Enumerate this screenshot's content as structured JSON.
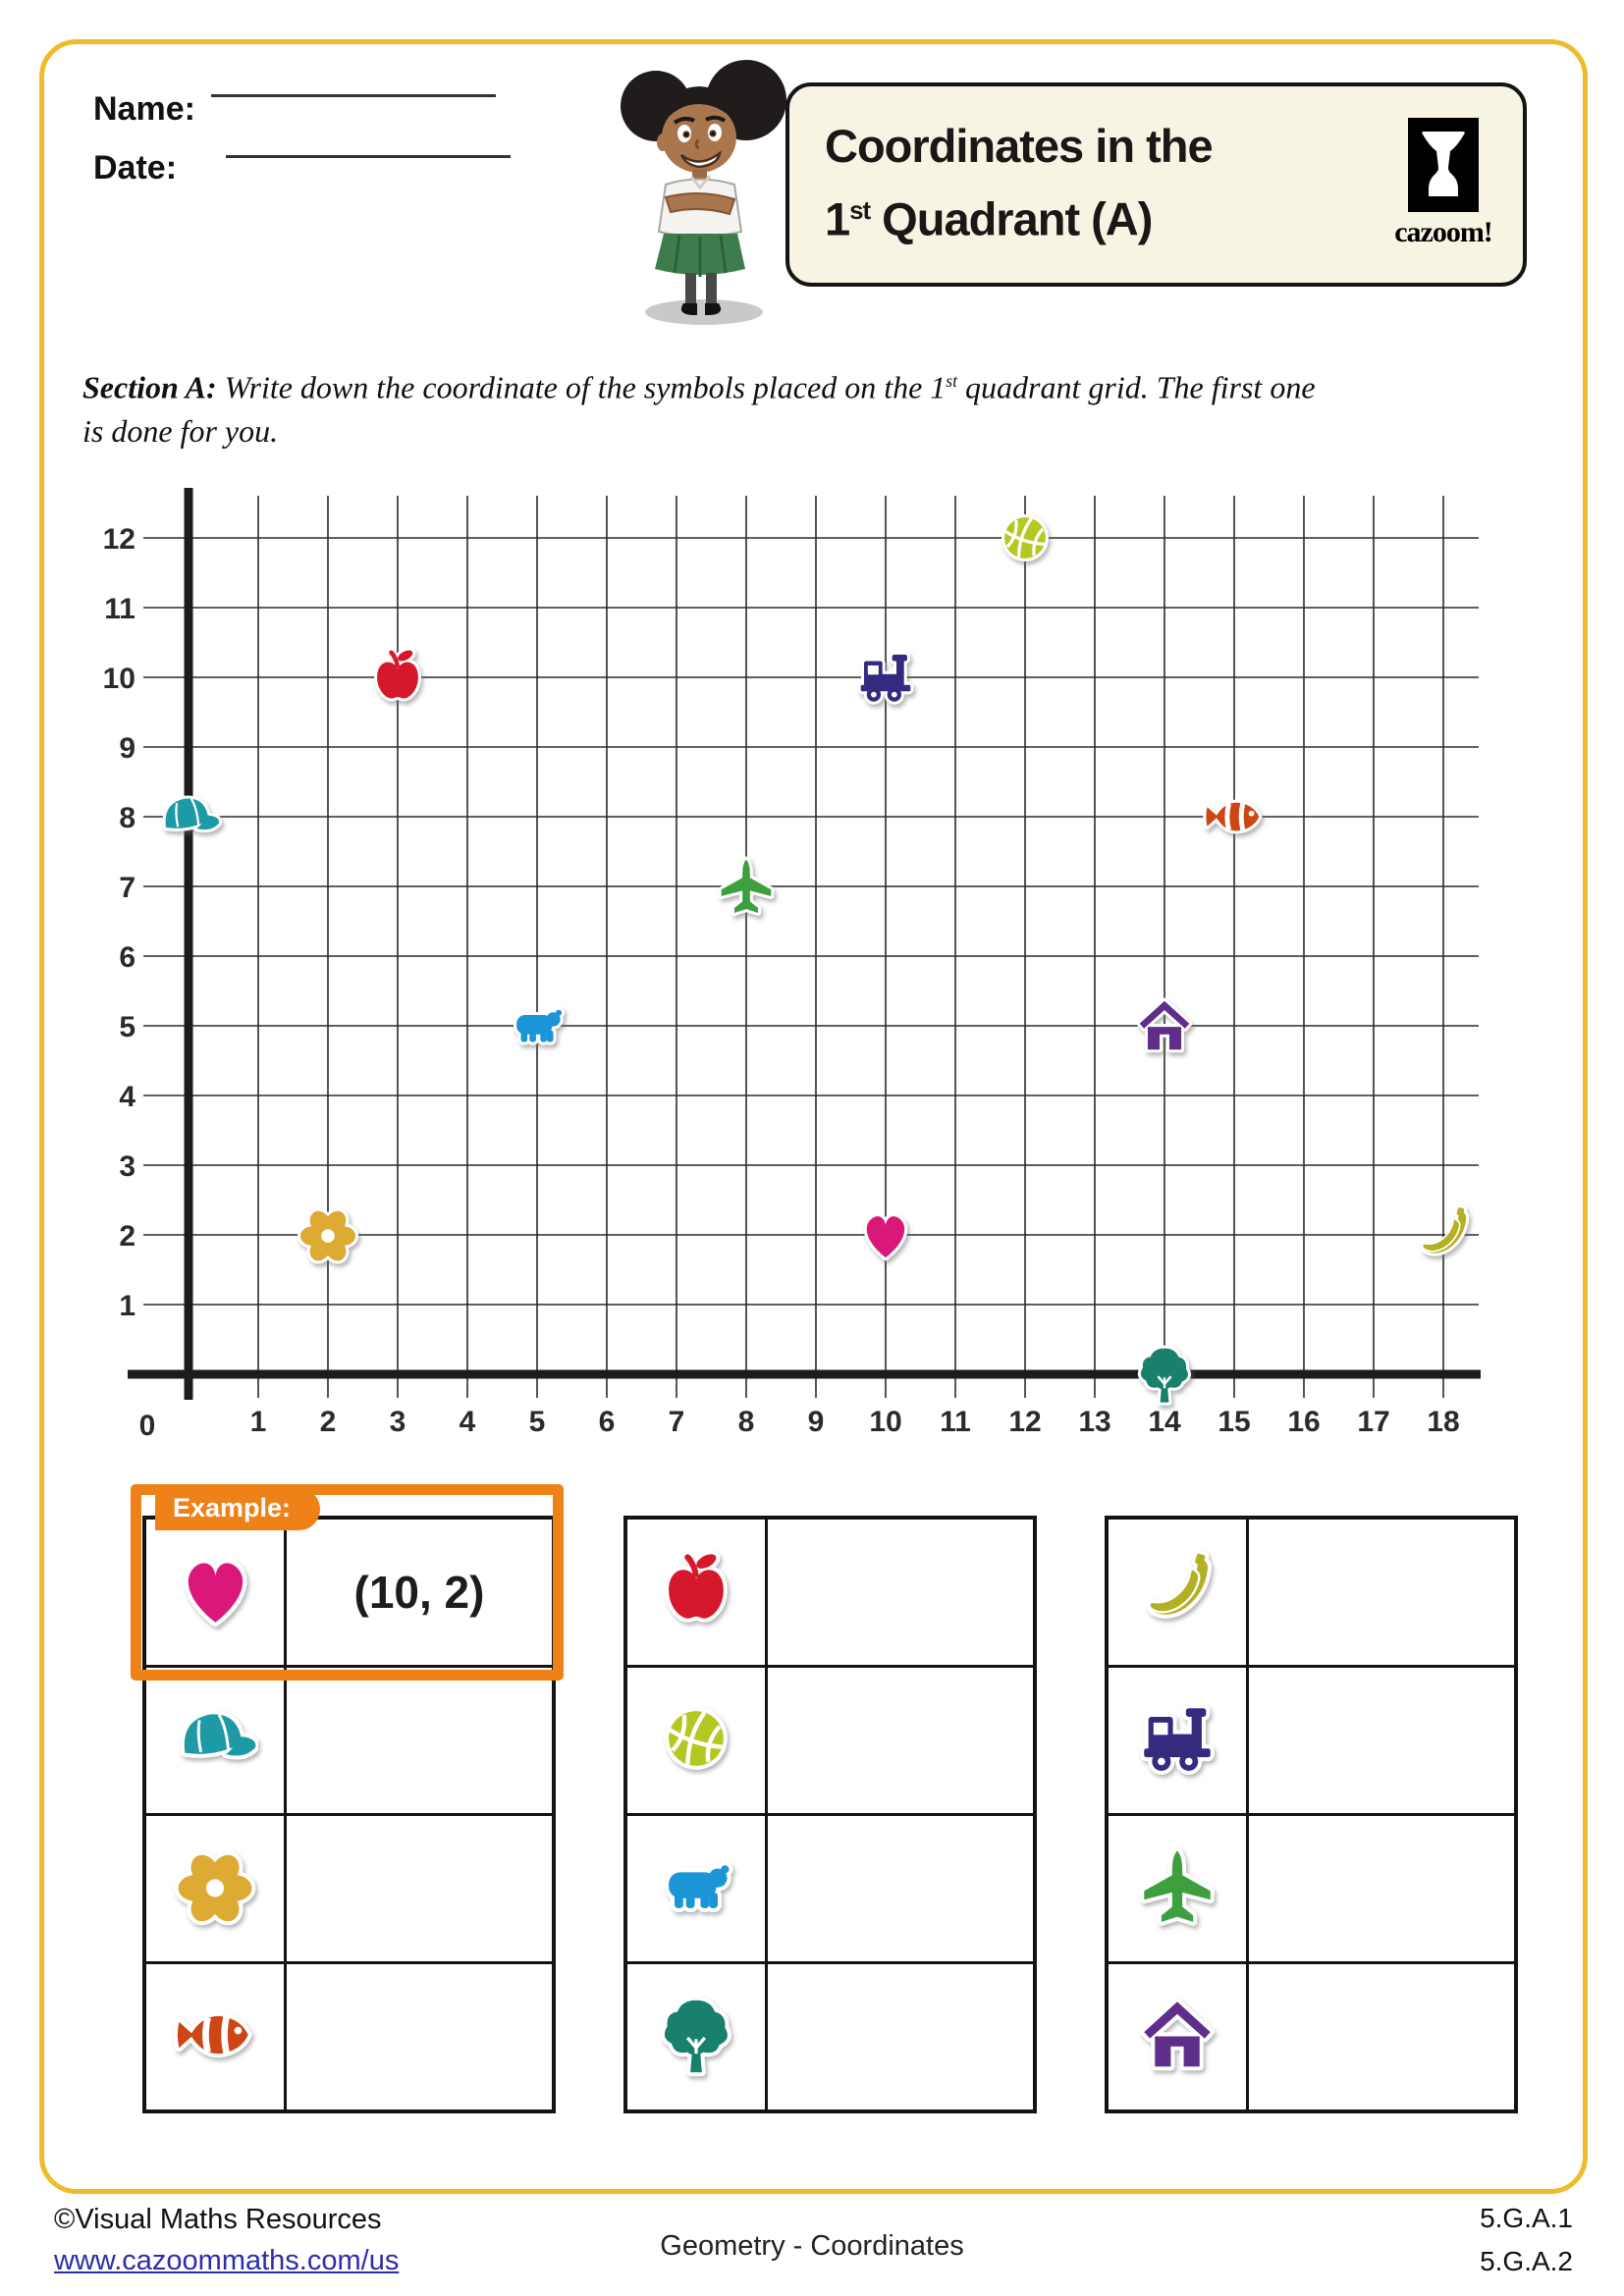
{
  "page": {
    "frame_color": "#eebc2b",
    "accent_orange": "#ee8118"
  },
  "header": {
    "name_label": "Name:",
    "date_label": "Date:",
    "title_line1": "Coordinates in the",
    "title_line2_num": "1",
    "title_line2_sup": "st",
    "title_line2_rest": " Quadrant (A)",
    "logo_text": "cazoom!"
  },
  "section": {
    "label": "Section A:",
    "instr_part1": "  Write down the coordinate of the symbols placed on the 1",
    "instr_sup": "st",
    "instr_part2": " quadrant grid. The first one",
    "instr_line2": "is done for you."
  },
  "grid": {
    "x_max": 18,
    "y_max": 12,
    "x_tick_labels": [
      "0",
      "1",
      "2",
      "3",
      "4",
      "5",
      "6",
      "7",
      "8",
      "9",
      "10",
      "11",
      "12",
      "13",
      "14",
      "15",
      "16",
      "17",
      "18"
    ],
    "y_tick_labels": [
      "1",
      "2",
      "3",
      "4",
      "5",
      "6",
      "7",
      "8",
      "9",
      "10",
      "11",
      "12"
    ],
    "points": [
      {
        "symbol": "cap",
        "x": 0,
        "y": 8
      },
      {
        "symbol": "flower",
        "x": 2,
        "y": 2
      },
      {
        "symbol": "apple",
        "x": 3,
        "y": 10
      },
      {
        "symbol": "bear",
        "x": 5,
        "y": 5
      },
      {
        "symbol": "airplane",
        "x": 8,
        "y": 7
      },
      {
        "symbol": "train",
        "x": 10,
        "y": 10
      },
      {
        "symbol": "heart",
        "x": 10,
        "y": 2
      },
      {
        "symbol": "basketball",
        "x": 12,
        "y": 12
      },
      {
        "symbol": "house",
        "x": 14,
        "y": 5
      },
      {
        "symbol": "tree",
        "x": 14,
        "y": 0
      },
      {
        "symbol": "fish",
        "x": 15,
        "y": 8
      },
      {
        "symbol": "banana",
        "x": 18,
        "y": 2
      }
    ]
  },
  "chart_data": {
    "type": "scatter",
    "title": "Coordinates in the 1st Quadrant (A)",
    "xlabel": "",
    "ylabel": "",
    "xlim": [
      0,
      18
    ],
    "ylim": [
      0,
      12
    ],
    "grid": true,
    "points": [
      {
        "label": "cap",
        "x": 0,
        "y": 8
      },
      {
        "label": "flower",
        "x": 2,
        "y": 2
      },
      {
        "label": "apple",
        "x": 3,
        "y": 10
      },
      {
        "label": "bear",
        "x": 5,
        "y": 5
      },
      {
        "label": "airplane",
        "x": 8,
        "y": 7
      },
      {
        "label": "train",
        "x": 10,
        "y": 10
      },
      {
        "label": "heart",
        "x": 10,
        "y": 2
      },
      {
        "label": "basketball",
        "x": 12,
        "y": 12
      },
      {
        "label": "house",
        "x": 14,
        "y": 5
      },
      {
        "label": "tree",
        "x": 14,
        "y": 0
      },
      {
        "label": "fish",
        "x": 15,
        "y": 8
      },
      {
        "label": "banana",
        "x": 18,
        "y": 2
      }
    ]
  },
  "symbol_colors": {
    "heart": "#d9187a",
    "cap": "#1d9aa6",
    "flower": "#ddaa33",
    "fish": "#cc4715",
    "apple": "#d6182c",
    "basketball": "#b4c822",
    "bear": "#1b95d6",
    "tree": "#19806c",
    "banana": "#b3b021",
    "train": "#322b7e",
    "airplane": "#3d9f3d",
    "house": "#5e2e8a"
  },
  "answer_section": {
    "example_label": "Example:",
    "tables": [
      {
        "rows": [
          {
            "symbol": "heart",
            "answer": "(10, 2)",
            "is_example": true
          },
          {
            "symbol": "cap",
            "answer": ""
          },
          {
            "symbol": "flower",
            "answer": ""
          },
          {
            "symbol": "fish",
            "answer": ""
          }
        ]
      },
      {
        "rows": [
          {
            "symbol": "apple",
            "answer": ""
          },
          {
            "symbol": "basketball",
            "answer": ""
          },
          {
            "symbol": "bear",
            "answer": ""
          },
          {
            "symbol": "tree",
            "answer": ""
          }
        ]
      },
      {
        "rows": [
          {
            "symbol": "banana",
            "answer": ""
          },
          {
            "symbol": "train",
            "answer": ""
          },
          {
            "symbol": "airplane",
            "answer": ""
          },
          {
            "symbol": "house",
            "answer": ""
          }
        ]
      }
    ]
  },
  "footer": {
    "copyright": "©Visual Maths Resources",
    "link": "www.cazoommaths.com/us",
    "center": "Geometry - Coordinates",
    "standard1": "5.G.A.1",
    "standard2": "5.G.A.2"
  }
}
